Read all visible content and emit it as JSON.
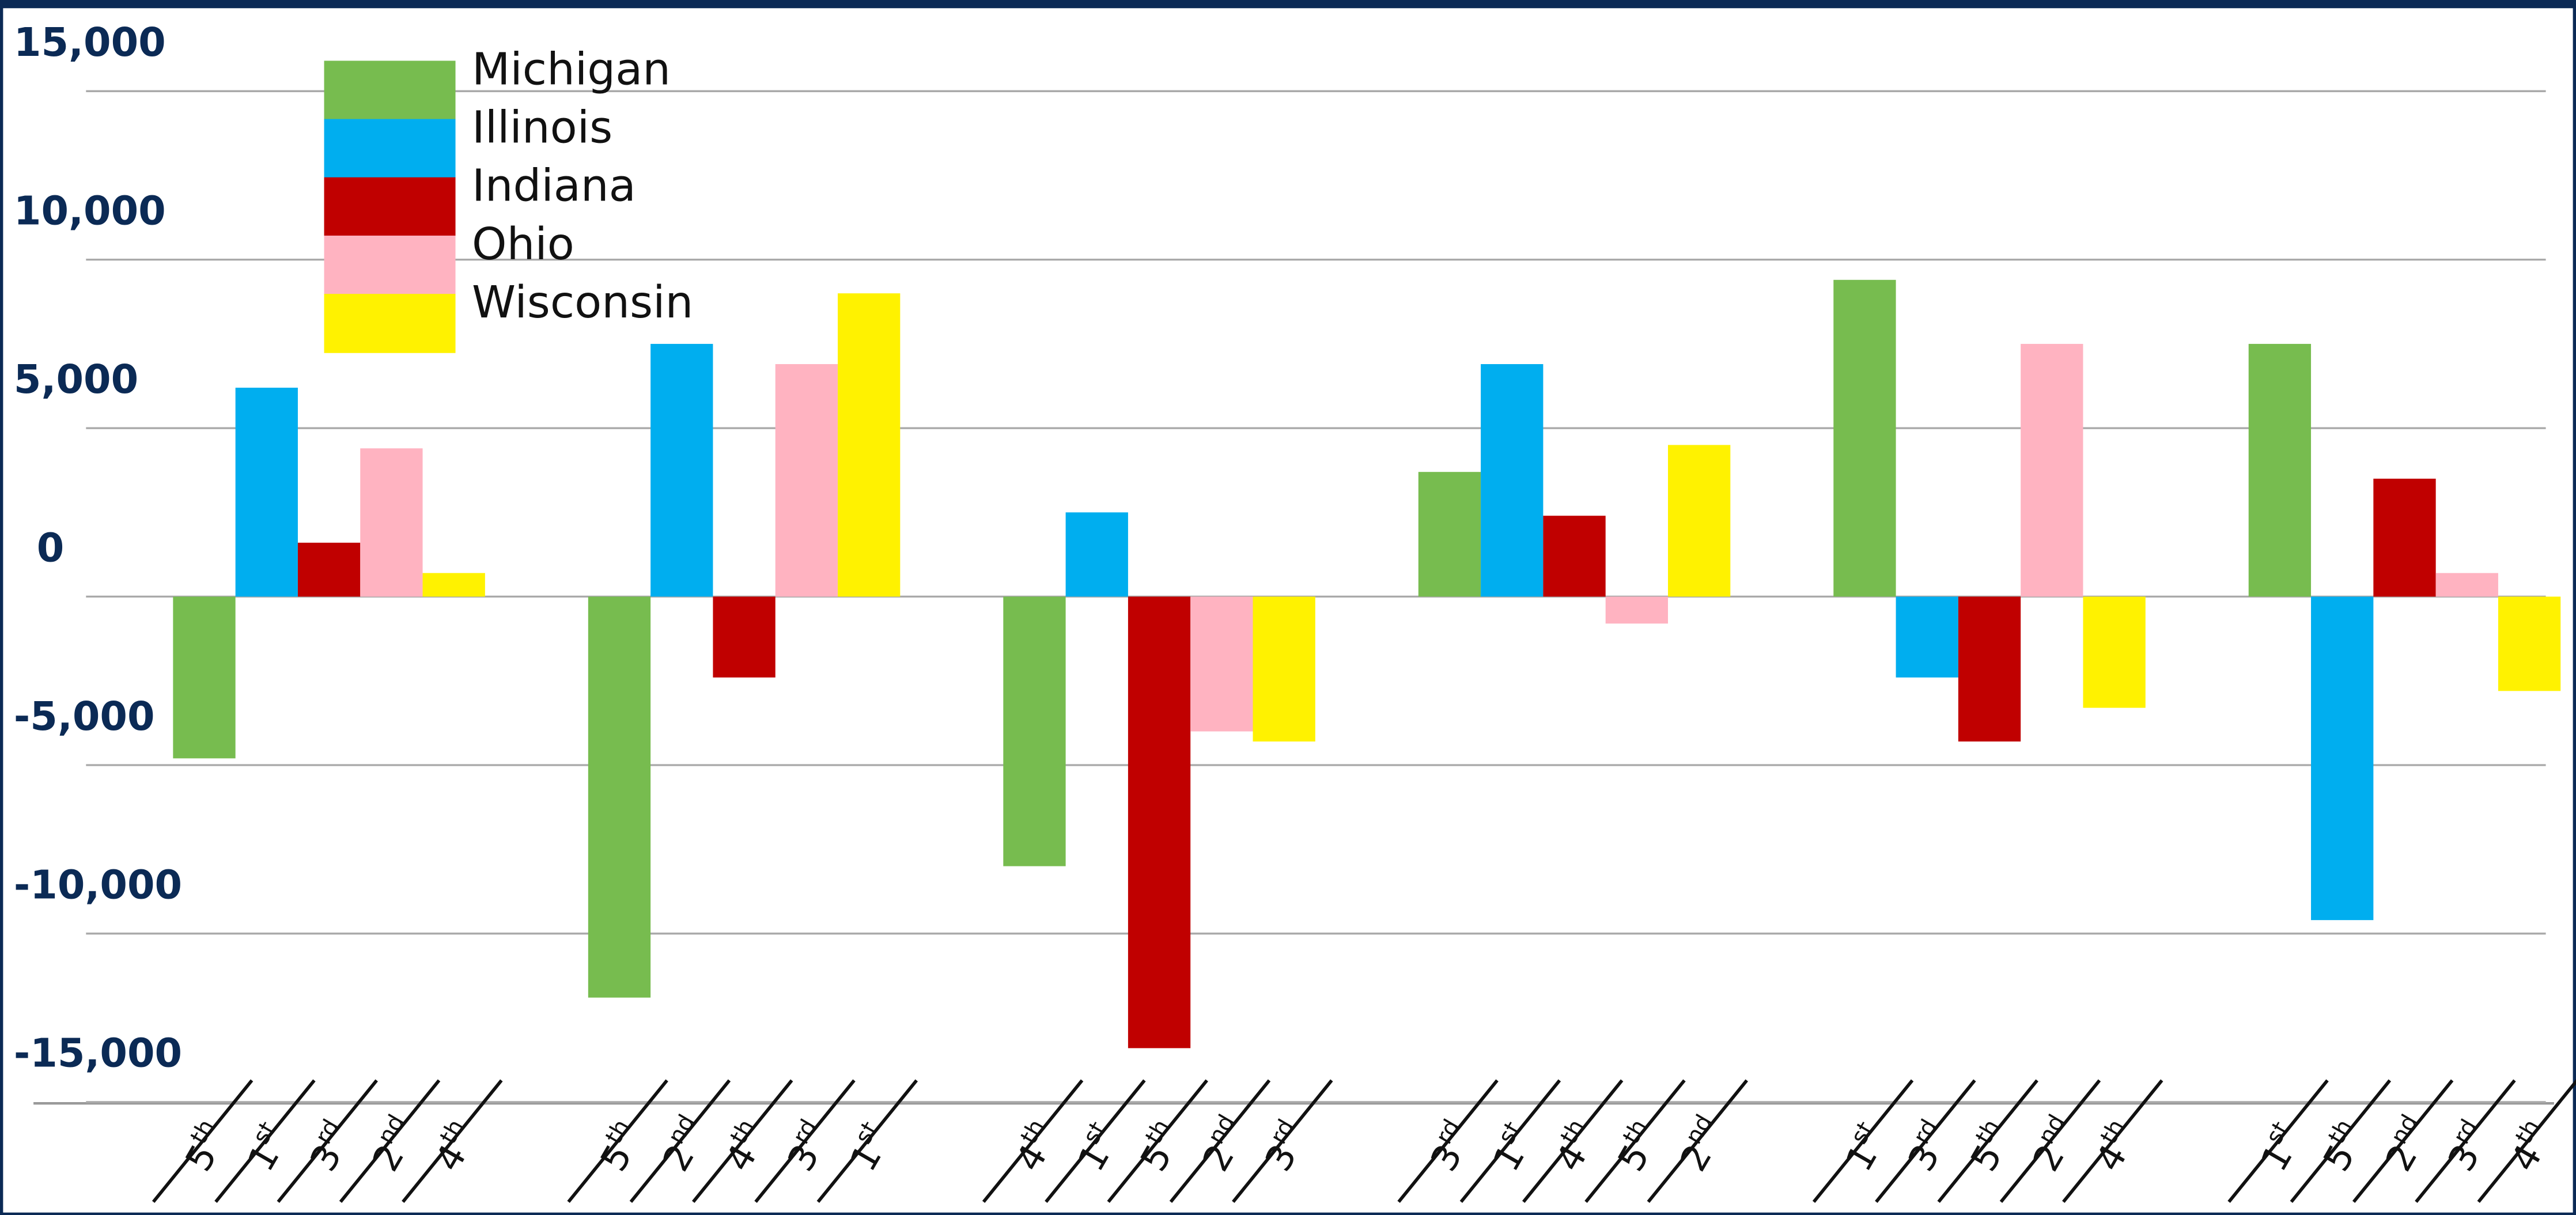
{
  "chart_data": {
    "type": "bar",
    "groups": 6,
    "ylim": [
      -16500,
      16000
    ],
    "yticks": [
      {
        "value": -15000,
        "label": "-15,000"
      },
      {
        "value": -10000,
        "label": "-10,000"
      },
      {
        "value": -5000,
        "label": "-5,000"
      },
      0,
      {
        "value": 5000,
        "label": "5,000"
      },
      {
        "value": 10000,
        "label": "10,000"
      },
      {
        "value": 15000,
        "label": "15,000"
      }
    ],
    "grid": true,
    "legend": "upper left",
    "series": [
      {
        "name": "Michigan",
        "color": "#77bc4f",
        "values": [
          -4800,
          -11900,
          -8000,
          3700,
          9400,
          7500
        ],
        "ranks": [
          {
            "n": "5",
            "s": "th"
          },
          {
            "n": "5",
            "s": "th"
          },
          {
            "n": "4",
            "s": "th"
          },
          {
            "n": "3",
            "s": "rd"
          },
          {
            "n": "1",
            "s": "st"
          },
          {
            "n": "1",
            "s": "st"
          }
        ]
      },
      {
        "name": "Illinois",
        "color": "#00aeef",
        "values": [
          6200,
          7500,
          2500,
          6900,
          -2400,
          -9600
        ],
        "ranks": [
          {
            "n": "1",
            "s": "st"
          },
          {
            "n": "2",
            "s": "nd"
          },
          {
            "n": "1",
            "s": "st"
          },
          {
            "n": "1",
            "s": "st"
          },
          {
            "n": "3",
            "s": "rd"
          },
          {
            "n": "5",
            "s": "th"
          }
        ]
      },
      {
        "name": "Indiana",
        "color": "#c00000",
        "values": [
          1600,
          -2400,
          -13400,
          2400,
          -4300,
          3500
        ],
        "ranks": [
          {
            "n": "3",
            "s": "rd"
          },
          {
            "n": "4",
            "s": "th"
          },
          {
            "n": "5",
            "s": "th"
          },
          {
            "n": "4",
            "s": "th"
          },
          {
            "n": "5",
            "s": "th"
          },
          {
            "n": "2",
            "s": "nd"
          }
        ]
      },
      {
        "name": "Ohio",
        "color": "#ffb3c1",
        "values": [
          4400,
          6900,
          -4000,
          -800,
          7500,
          700
        ],
        "ranks": [
          {
            "n": "2",
            "s": "nd"
          },
          {
            "n": "3",
            "s": "rd"
          },
          {
            "n": "2",
            "s": "nd"
          },
          {
            "n": "5",
            "s": "th"
          },
          {
            "n": "2",
            "s": "nd"
          },
          {
            "n": "3",
            "s": "rd"
          }
        ]
      },
      {
        "name": "Wisconsin",
        "color": "#fff200",
        "values": [
          700,
          9000,
          -4300,
          4500,
          -3300,
          -2800
        ],
        "ranks": [
          {
            "n": "4",
            "s": "th"
          },
          {
            "n": "1",
            "s": "st"
          },
          {
            "n": "3",
            "s": "rd"
          },
          {
            "n": "2",
            "s": "nd"
          },
          {
            "n": "4",
            "s": "th"
          },
          {
            "n": "4",
            "s": "th"
          }
        ]
      }
    ]
  }
}
